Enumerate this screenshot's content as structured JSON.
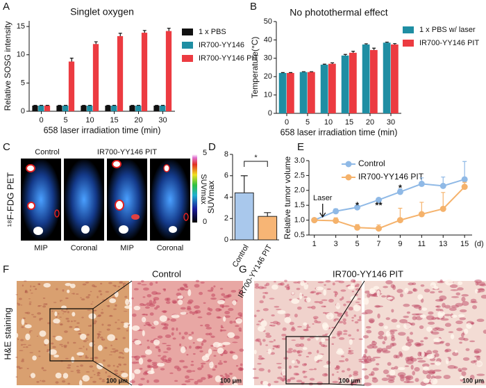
{
  "panel_labels": [
    "A",
    "B",
    "C",
    "D",
    "E",
    "F",
    "G"
  ],
  "chart_data": [
    {
      "type": "bar",
      "title": "Singlet oxygen",
      "x_label": "658 laser irradiation time (min)",
      "y_label": "Relative SOSG intensity",
      "categories": [
        "0",
        "5",
        "10",
        "15",
        "20",
        "30"
      ],
      "series": [
        {
          "name": "1 x PBS",
          "color": "#111111",
          "values": [
            1,
            1,
            1,
            1,
            1,
            1
          ],
          "errors": [
            0.05,
            0.05,
            0.05,
            0.05,
            0.05,
            0.05
          ]
        },
        {
          "name": "IR700-YY146",
          "color": "#1f8ea3",
          "values": [
            1,
            1,
            1,
            1,
            1,
            1
          ],
          "errors": [
            0.05,
            0.05,
            0.05,
            0.05,
            0.05,
            0.05
          ]
        },
        {
          "name": "IR700-YY146 PIT",
          "color": "#ec3b41",
          "values": [
            1,
            8.8,
            11.9,
            13.3,
            13.9,
            14.2
          ],
          "errors": [
            0.05,
            0.6,
            0.4,
            0.5,
            0.4,
            0.5
          ]
        }
      ],
      "ylim": [
        0,
        16
      ],
      "yticks": [
        0,
        5,
        10,
        15
      ]
    },
    {
      "type": "bar",
      "title": "No photothermal effect",
      "x_label": "658 laser irradiation time (min)",
      "y_label": "Temperature(°C)",
      "categories": [
        "0",
        "5",
        "10",
        "15",
        "20",
        "30"
      ],
      "series": [
        {
          "name": "1 x PBS w/ laser",
          "color": "#1f8ea3",
          "values": [
            22,
            22.5,
            26.5,
            31.5,
            37.5,
            38.5
          ],
          "errors": [
            0.2,
            0.2,
            0.3,
            0.6,
            0.4,
            0.3
          ]
        },
        {
          "name": "IR700-YY146 PIT",
          "color": "#ec3b41",
          "values": [
            22,
            22.5,
            27,
            33,
            34.5,
            37.5
          ],
          "errors": [
            0.2,
            0.2,
            0.5,
            0.8,
            1,
            0.5
          ]
        }
      ],
      "ylim": [
        0,
        50
      ],
      "yticks": [
        0,
        10,
        20,
        30,
        40,
        50
      ]
    },
    {
      "type": "bar",
      "y_label": "SUVmax",
      "categories": [
        "Control",
        "IR700-YY146 PIT"
      ],
      "values": [
        4.4,
        2.2
      ],
      "errors": [
        1.6,
        0.35
      ],
      "colors": [
        "#a9c8ec",
        "#f7b575"
      ],
      "ylim": [
        0,
        8
      ],
      "yticks": [
        0,
        2,
        4,
        6,
        8
      ],
      "significance": "*"
    },
    {
      "type": "line",
      "y_label": "Relative tumor volume",
      "x_label": "(d)",
      "x": [
        1,
        3,
        5,
        7,
        9,
        11,
        13,
        15
      ],
      "series": [
        {
          "name": "Control",
          "color": "#8fb9e6",
          "values": [
            1,
            1.3,
            1.43,
            1.68,
            1.95,
            2.22,
            2.15,
            2.37
          ],
          "errors": [
            0.05,
            0.08,
            0.05,
            0.05,
            0.1,
            0.2,
            0.3,
            0.6
          ]
        },
        {
          "name": "IR700-YY146 PIT",
          "color": "#f5b26b",
          "values": [
            1,
            0.98,
            0.75,
            0.72,
            1.0,
            1.2,
            1.38,
            2.12
          ],
          "errors": [
            0.05,
            0.1,
            0.1,
            0.12,
            0.4,
            0.4,
            0.55,
            0.15
          ]
        }
      ],
      "xlim": [
        0.5,
        15.7
      ],
      "xticks": [
        1,
        3,
        5,
        7,
        9,
        11,
        13,
        15
      ],
      "ylim": [
        0.5,
        3.0
      ],
      "yticks": [
        0.5,
        {
          "value": 1,
          "label": "1.0"
        },
        1.5,
        {
          "value": 2,
          "label": "2.0"
        },
        2.5,
        {
          "value": 3,
          "label": "3.0"
        }
      ],
      "annotation": "Laser",
      "stars": [
        {
          "text": "*",
          "x": 5
        },
        {
          "text": "**",
          "x": 7
        },
        {
          "text": "*",
          "x": 9
        }
      ]
    }
  ],
  "pet": {
    "side_label": "¹⁸F-FDG PET",
    "groups": [
      "Control",
      "IR700-YY146 PIT"
    ],
    "views": [
      "MIP",
      "Coronal",
      "MIP",
      "Coronal"
    ],
    "colorbar": {
      "max": "5",
      "min": "0",
      "label": "SUVmax"
    }
  },
  "histology": {
    "side_label": "H&E staining",
    "titles": [
      "Control",
      "IR700-YY146 PIT"
    ],
    "scale_bars": [
      "100 μm",
      "100 μm",
      "100 μm",
      "100 μm"
    ]
  }
}
